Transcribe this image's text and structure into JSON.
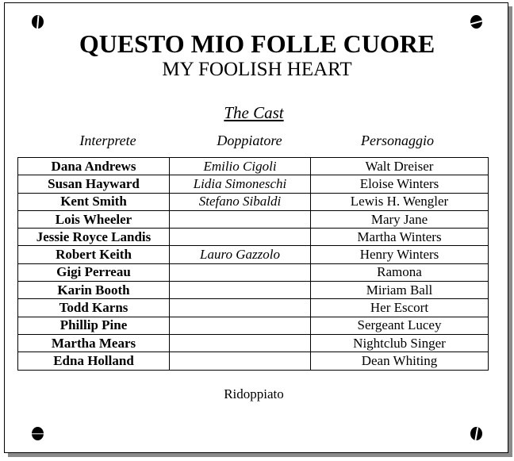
{
  "title": "QUESTO MIO FOLLE CUORE",
  "subtitle": "MY FOOLISH HEART",
  "section_title": "The Cast",
  "columns": [
    "Interprete",
    "Doppiatore",
    "Personaggio"
  ],
  "rows": [
    {
      "actor": "Dana Andrews",
      "dubber": "Emilio Cigoli",
      "character": "Walt Dreiser"
    },
    {
      "actor": "Susan Hayward",
      "dubber": "Lidia Simoneschi",
      "character": "Eloise Winters"
    },
    {
      "actor": "Kent Smith",
      "dubber": "Stefano Sibaldi",
      "character": "Lewis H. Wengler"
    },
    {
      "actor": "Lois Wheeler",
      "dubber": "",
      "character": "Mary Jane"
    },
    {
      "actor": "Jessie Royce Landis",
      "dubber": "",
      "character": "Martha Winters"
    },
    {
      "actor": "Robert Keith",
      "dubber": "Lauro Gazzolo",
      "character": "Henry Winters"
    },
    {
      "actor": "Gigi Perreau",
      "dubber": "",
      "character": "Ramona"
    },
    {
      "actor": "Karin Booth",
      "dubber": "",
      "character": "Miriam Ball"
    },
    {
      "actor": "Todd Karns",
      "dubber": "",
      "character": "Her Escort"
    },
    {
      "actor": "Phillip Pine",
      "dubber": "",
      "character": "Sergeant Lucey"
    },
    {
      "actor": "Martha Mears",
      "dubber": "",
      "character": "Nightclub Singer"
    },
    {
      "actor": "Edna Holland",
      "dubber": "",
      "character": "Dean Whiting"
    }
  ],
  "footer": "Ridoppiato"
}
